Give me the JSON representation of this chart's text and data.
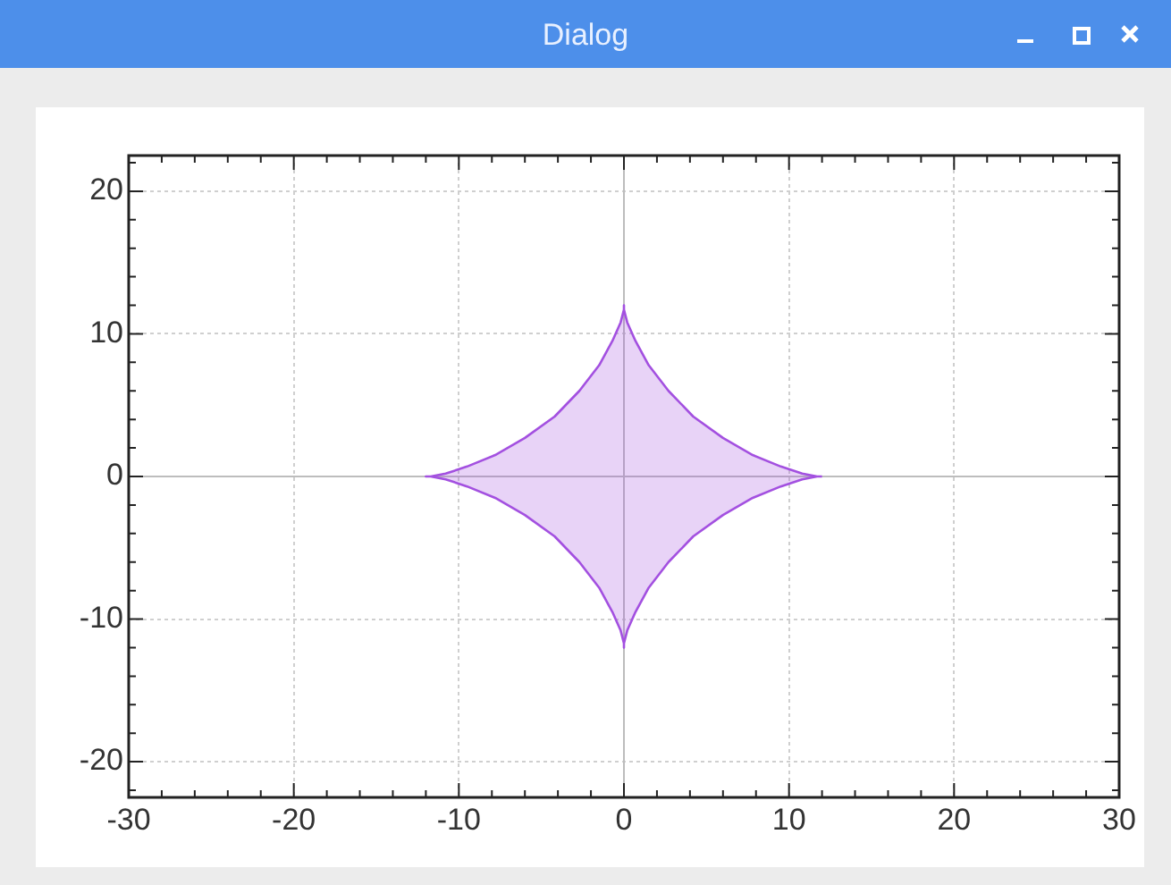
{
  "chart_data": {
    "type": "area",
    "title": "Dialog",
    "xlim": [
      -30,
      30
    ],
    "xticks": [
      -30,
      -20,
      -10,
      0,
      10,
      20,
      30
    ],
    "ylim": [
      -22.5,
      22.5
    ],
    "yticks": [
      -20,
      -10,
      0,
      10,
      20
    ],
    "grid": true,
    "legend": false,
    "marker": "none",
    "line_style": "solid",
    "series": [
      {
        "color": "#a350e0",
        "x": [
          12,
          11.7,
          10.8,
          9.5,
          7.8,
          6.0,
          4.2,
          2.7,
          1.5,
          0.7,
          0.2,
          0,
          0,
          0,
          -0.2,
          -0.7,
          -1.5,
          -2.7,
          -4.2,
          -6.0,
          -7.8,
          -9.5,
          -10.8,
          -11.7,
          -12,
          -11.7,
          -10.8,
          -9.5,
          -7.8,
          -6.0,
          -4.2,
          -2.7,
          -1.5,
          -0.7,
          -0.2,
          0,
          0,
          0,
          0.2,
          0.7,
          1.5,
          2.7,
          4.2,
          6.0,
          7.8,
          9.5,
          10.8,
          11.7,
          12
        ],
        "values": [
          0,
          0,
          0.2,
          0.7,
          1.5,
          2.7,
          4.2,
          6.0,
          7.8,
          9.5,
          10.8,
          11.7,
          12,
          11.7,
          10.8,
          9.5,
          7.8,
          6.0,
          4.2,
          2.7,
          1.5,
          0.7,
          0.2,
          0,
          0,
          0,
          -0.2,
          -0.7,
          -1.5,
          -2.7,
          -4.2,
          -6.0,
          -7.8,
          -9.5,
          -10.8,
          -11.7,
          -12,
          -11.7,
          -10.8,
          -9.5,
          -7.8,
          -6.0,
          -4.2,
          -2.7,
          -1.5,
          -0.7,
          -0.2,
          0,
          0
        ]
      }
    ]
  }
}
